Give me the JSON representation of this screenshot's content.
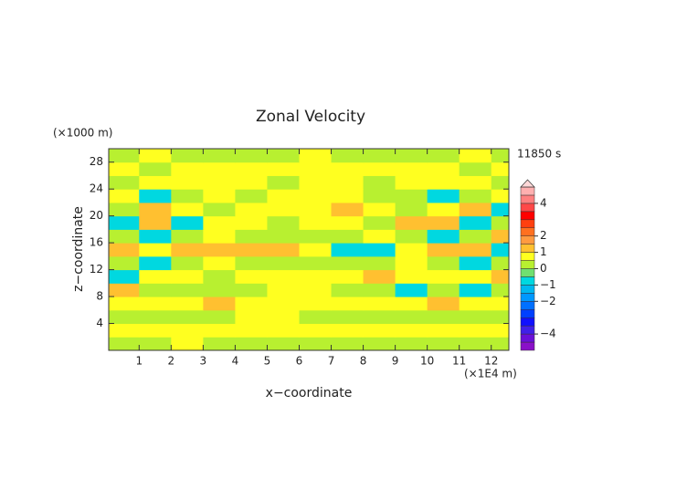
{
  "chart_data": {
    "type": "contour",
    "title": "Zonal Velocity",
    "x_label": "x−coordinate",
    "y_label": "z−coordinate",
    "x_unit": "(×1E4 m)",
    "y_unit": "(×1000 m)",
    "time_label": "11850 s",
    "xlim": [
      0.05,
      12.55
    ],
    "ylim": [
      0,
      30
    ],
    "xticks": [
      1,
      2,
      3,
      4,
      5,
      6,
      7,
      8,
      9,
      10,
      11,
      12
    ],
    "yticks": [
      4,
      8,
      12,
      16,
      20,
      24,
      28
    ],
    "x": [
      0.5,
      1.5,
      2.5,
      3.5,
      4.5,
      5.5,
      6.5,
      7.5,
      8.5,
      9.5,
      10.5,
      11.5,
      12.5
    ],
    "z": [
      1,
      3,
      5,
      7,
      9,
      11,
      13,
      15,
      17,
      19,
      21,
      23,
      25,
      27,
      29
    ],
    "field": [
      [
        0.3,
        0.3,
        0.7,
        0.3,
        0.3,
        0.3,
        0.3,
        0.3,
        0.3,
        0.3,
        0.3,
        0.3,
        0.3
      ],
      [
        0.7,
        0.7,
        0.7,
        0.7,
        0.7,
        0.7,
        0.7,
        0.7,
        0.7,
        0.7,
        0.7,
        0.7,
        0.7
      ],
      [
        0.3,
        0.3,
        0.3,
        0.3,
        0.7,
        0.7,
        0.3,
        0.3,
        0.3,
        0.3,
        0.3,
        0.3,
        0.3
      ],
      [
        0.7,
        0.7,
        0.7,
        1.2,
        0.7,
        0.7,
        0.7,
        0.7,
        0.7,
        0.7,
        1.2,
        0.7,
        0.7
      ],
      [
        1.2,
        0.3,
        0.3,
        0.3,
        0.3,
        0.7,
        0.7,
        0.3,
        0.3,
        -0.8,
        0.3,
        -0.8,
        0.3
      ],
      [
        -0.8,
        0.7,
        0.7,
        0.3,
        0.7,
        0.7,
        0.7,
        0.7,
        1.2,
        0.7,
        0.7,
        0.7,
        1.2
      ],
      [
        0.3,
        -0.8,
        0.3,
        0.7,
        0.3,
        0.3,
        0.3,
        0.3,
        0.3,
        0.7,
        0.3,
        -0.8,
        0.3
      ],
      [
        1.2,
        0.7,
        1.2,
        1.2,
        1.2,
        1.2,
        0.7,
        -0.8,
        -0.8,
        0.7,
        1.2,
        1.2,
        -0.8
      ],
      [
        0.3,
        -0.8,
        0.3,
        0.7,
        0.3,
        0.3,
        0.3,
        0.3,
        0.7,
        0.3,
        -0.8,
        0.3,
        1.2
      ],
      [
        -0.8,
        1.2,
        -0.8,
        0.7,
        0.7,
        0.3,
        0.7,
        0.7,
        0.3,
        1.2,
        1.2,
        -0.8,
        0.3
      ],
      [
        0.3,
        1.2,
        0.7,
        0.3,
        0.7,
        0.7,
        0.7,
        1.2,
        0.7,
        0.3,
        0.7,
        1.2,
        -0.8
      ],
      [
        0.7,
        -0.8,
        0.3,
        0.7,
        0.3,
        0.7,
        0.7,
        0.7,
        0.3,
        0.3,
        -0.8,
        0.3,
        0.7
      ],
      [
        0.3,
        0.7,
        0.7,
        0.7,
        0.7,
        0.3,
        0.7,
        0.7,
        0.3,
        0.7,
        0.7,
        0.7,
        0.3
      ],
      [
        0.7,
        0.3,
        0.7,
        0.7,
        0.7,
        0.7,
        0.7,
        0.7,
        0.7,
        0.7,
        0.7,
        0.3,
        0.7
      ],
      [
        0.3,
        0.7,
        0.3,
        0.3,
        0.3,
        0.3,
        0.7,
        0.3,
        0.3,
        0.3,
        0.3,
        0.7,
        0.3
      ]
    ],
    "levels": [
      -5,
      -4.5,
      -4,
      -3.5,
      -3,
      -2.5,
      -2,
      -1.5,
      -1,
      -0.5,
      0,
      0.5,
      1,
      1.5,
      2,
      2.5,
      3,
      3.5,
      4,
      4.5,
      5
    ],
    "colors": [
      "#8a10c8",
      "#6a10d8",
      "#4020e8",
      "#1010ff",
      "#0040ff",
      "#0070ff",
      "#0098ff",
      "#00b8f0",
      "#00d8e0",
      "#70e070",
      "#b8f030",
      "#ffff20",
      "#ffc030",
      "#ff9a40",
      "#ff7020",
      "#ff4010",
      "#ff0000",
      "#ff4848",
      "#ff8080",
      "#ffb0b0"
    ],
    "extend_color": "#ffd8d8",
    "colorbar_ticks": [
      {
        "value": -4,
        "label": "−4"
      },
      {
        "value": -2,
        "label": "−2"
      },
      {
        "value": -1,
        "label": "−1"
      },
      0,
      1,
      2,
      4
    ]
  }
}
